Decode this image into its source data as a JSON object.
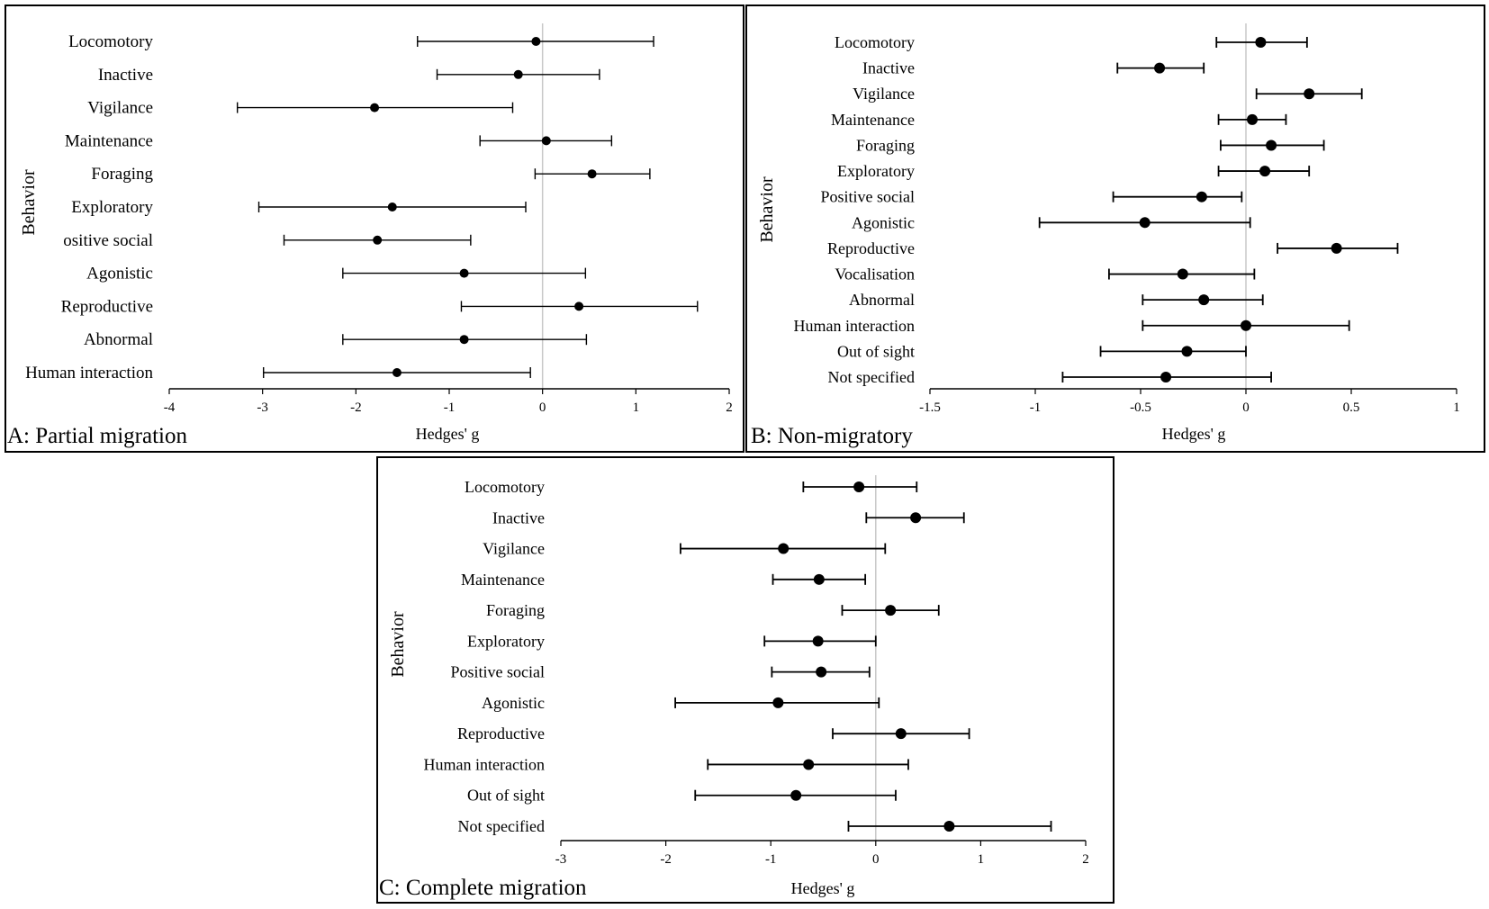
{
  "chart_data": [
    {
      "id": "A",
      "type": "forest",
      "panel_label": "A: Partial migration",
      "xlabel": "Hedges' g",
      "ylabel": "Behavior",
      "xlim": [
        -4,
        2
      ],
      "xticks": [
        -4,
        -3,
        -2,
        -1,
        0,
        1,
        2
      ],
      "tick_labels": [
        "-4",
        "-3",
        "-2",
        "-1",
        "0",
        "1",
        "2"
      ],
      "reference_line": 0,
      "categories": [
        "Locomotory",
        "Inactive",
        "Vigilance",
        "Maintenance",
        "Foraging",
        "Exploratory",
        "ositive social",
        "Agonistic",
        "Reproductive",
        "Abnormal",
        "Human interaction"
      ],
      "estimates": [
        -0.07,
        -0.26,
        -1.8,
        0.04,
        0.53,
        -1.61,
        -1.77,
        -0.84,
        0.39,
        -0.84,
        -1.56
      ],
      "ci_lower": [
        -1.34,
        -1.13,
        -3.27,
        -0.67,
        -0.08,
        -3.04,
        -2.77,
        -2.14,
        -0.87,
        -2.14,
        -2.99
      ],
      "ci_upper": [
        1.19,
        0.61,
        -0.32,
        0.74,
        1.15,
        -0.18,
        -0.77,
        0.46,
        1.66,
        0.47,
        -0.13
      ]
    },
    {
      "id": "B",
      "type": "forest",
      "panel_label": "B: Non-migratory",
      "xlabel": "Hedges' g",
      "ylabel": "Behavior",
      "xlim": [
        -1.5,
        1
      ],
      "xticks": [
        -1.5,
        -1,
        -0.5,
        0,
        0.5,
        1
      ],
      "tick_labels": [
        "-1.5",
        "-1",
        "-0.5",
        "0",
        "0.5",
        "1"
      ],
      "reference_line": 0,
      "categories": [
        "Locomotory",
        "Inactive",
        "Vigilance",
        "Maintenance",
        "Foraging",
        "Exploratory",
        "Positive social",
        "Agonistic",
        "Reproductive",
        "Vocalisation",
        "Abnormal",
        "Human interaction",
        "Out of sight",
        "Not specified"
      ],
      "estimates": [
        0.07,
        -0.41,
        0.3,
        0.03,
        0.12,
        0.09,
        -0.21,
        -0.48,
        0.43,
        -0.3,
        -0.2,
        0.0,
        -0.28,
        -0.38
      ],
      "ci_lower": [
        -0.14,
        -0.61,
        0.05,
        -0.13,
        -0.12,
        -0.13,
        -0.63,
        -0.98,
        0.15,
        -0.65,
        -0.49,
        -0.49,
        -0.69,
        -0.87
      ],
      "ci_upper": [
        0.29,
        -0.2,
        0.55,
        0.19,
        0.37,
        0.3,
        -0.02,
        0.02,
        0.72,
        0.04,
        0.08,
        0.49,
        0.0,
        0.12
      ]
    },
    {
      "id": "C",
      "type": "forest",
      "panel_label": "C: Complete migration",
      "xlabel": "Hedges' g",
      "ylabel": "Behavior",
      "xlim": [
        -3,
        2
      ],
      "xticks": [
        -3,
        -2,
        -1,
        0,
        1,
        2
      ],
      "tick_labels": [
        "-3",
        "-2",
        "-1",
        "0",
        "1",
        "2"
      ],
      "reference_line": 0,
      "categories": [
        "Locomotory",
        "Inactive",
        "Vigilance",
        "Maintenance",
        "Foraging",
        "Exploratory",
        "Positive social",
        "Agonistic",
        "Reproductive",
        "Human interaction",
        "Out of sight",
        "Not specified"
      ],
      "estimates": [
        -0.16,
        0.38,
        -0.88,
        -0.54,
        0.14,
        -0.55,
        -0.52,
        -0.93,
        0.24,
        -0.64,
        -0.76,
        0.7
      ],
      "ci_lower": [
        -0.69,
        -0.09,
        -1.86,
        -0.98,
        -0.32,
        -1.06,
        -0.99,
        -1.91,
        -0.41,
        -1.6,
        -1.72,
        -0.26
      ],
      "ci_upper": [
        0.39,
        0.84,
        0.09,
        -0.1,
        0.6,
        0.0,
        -0.06,
        0.03,
        0.89,
        0.31,
        0.19,
        1.67
      ]
    }
  ]
}
